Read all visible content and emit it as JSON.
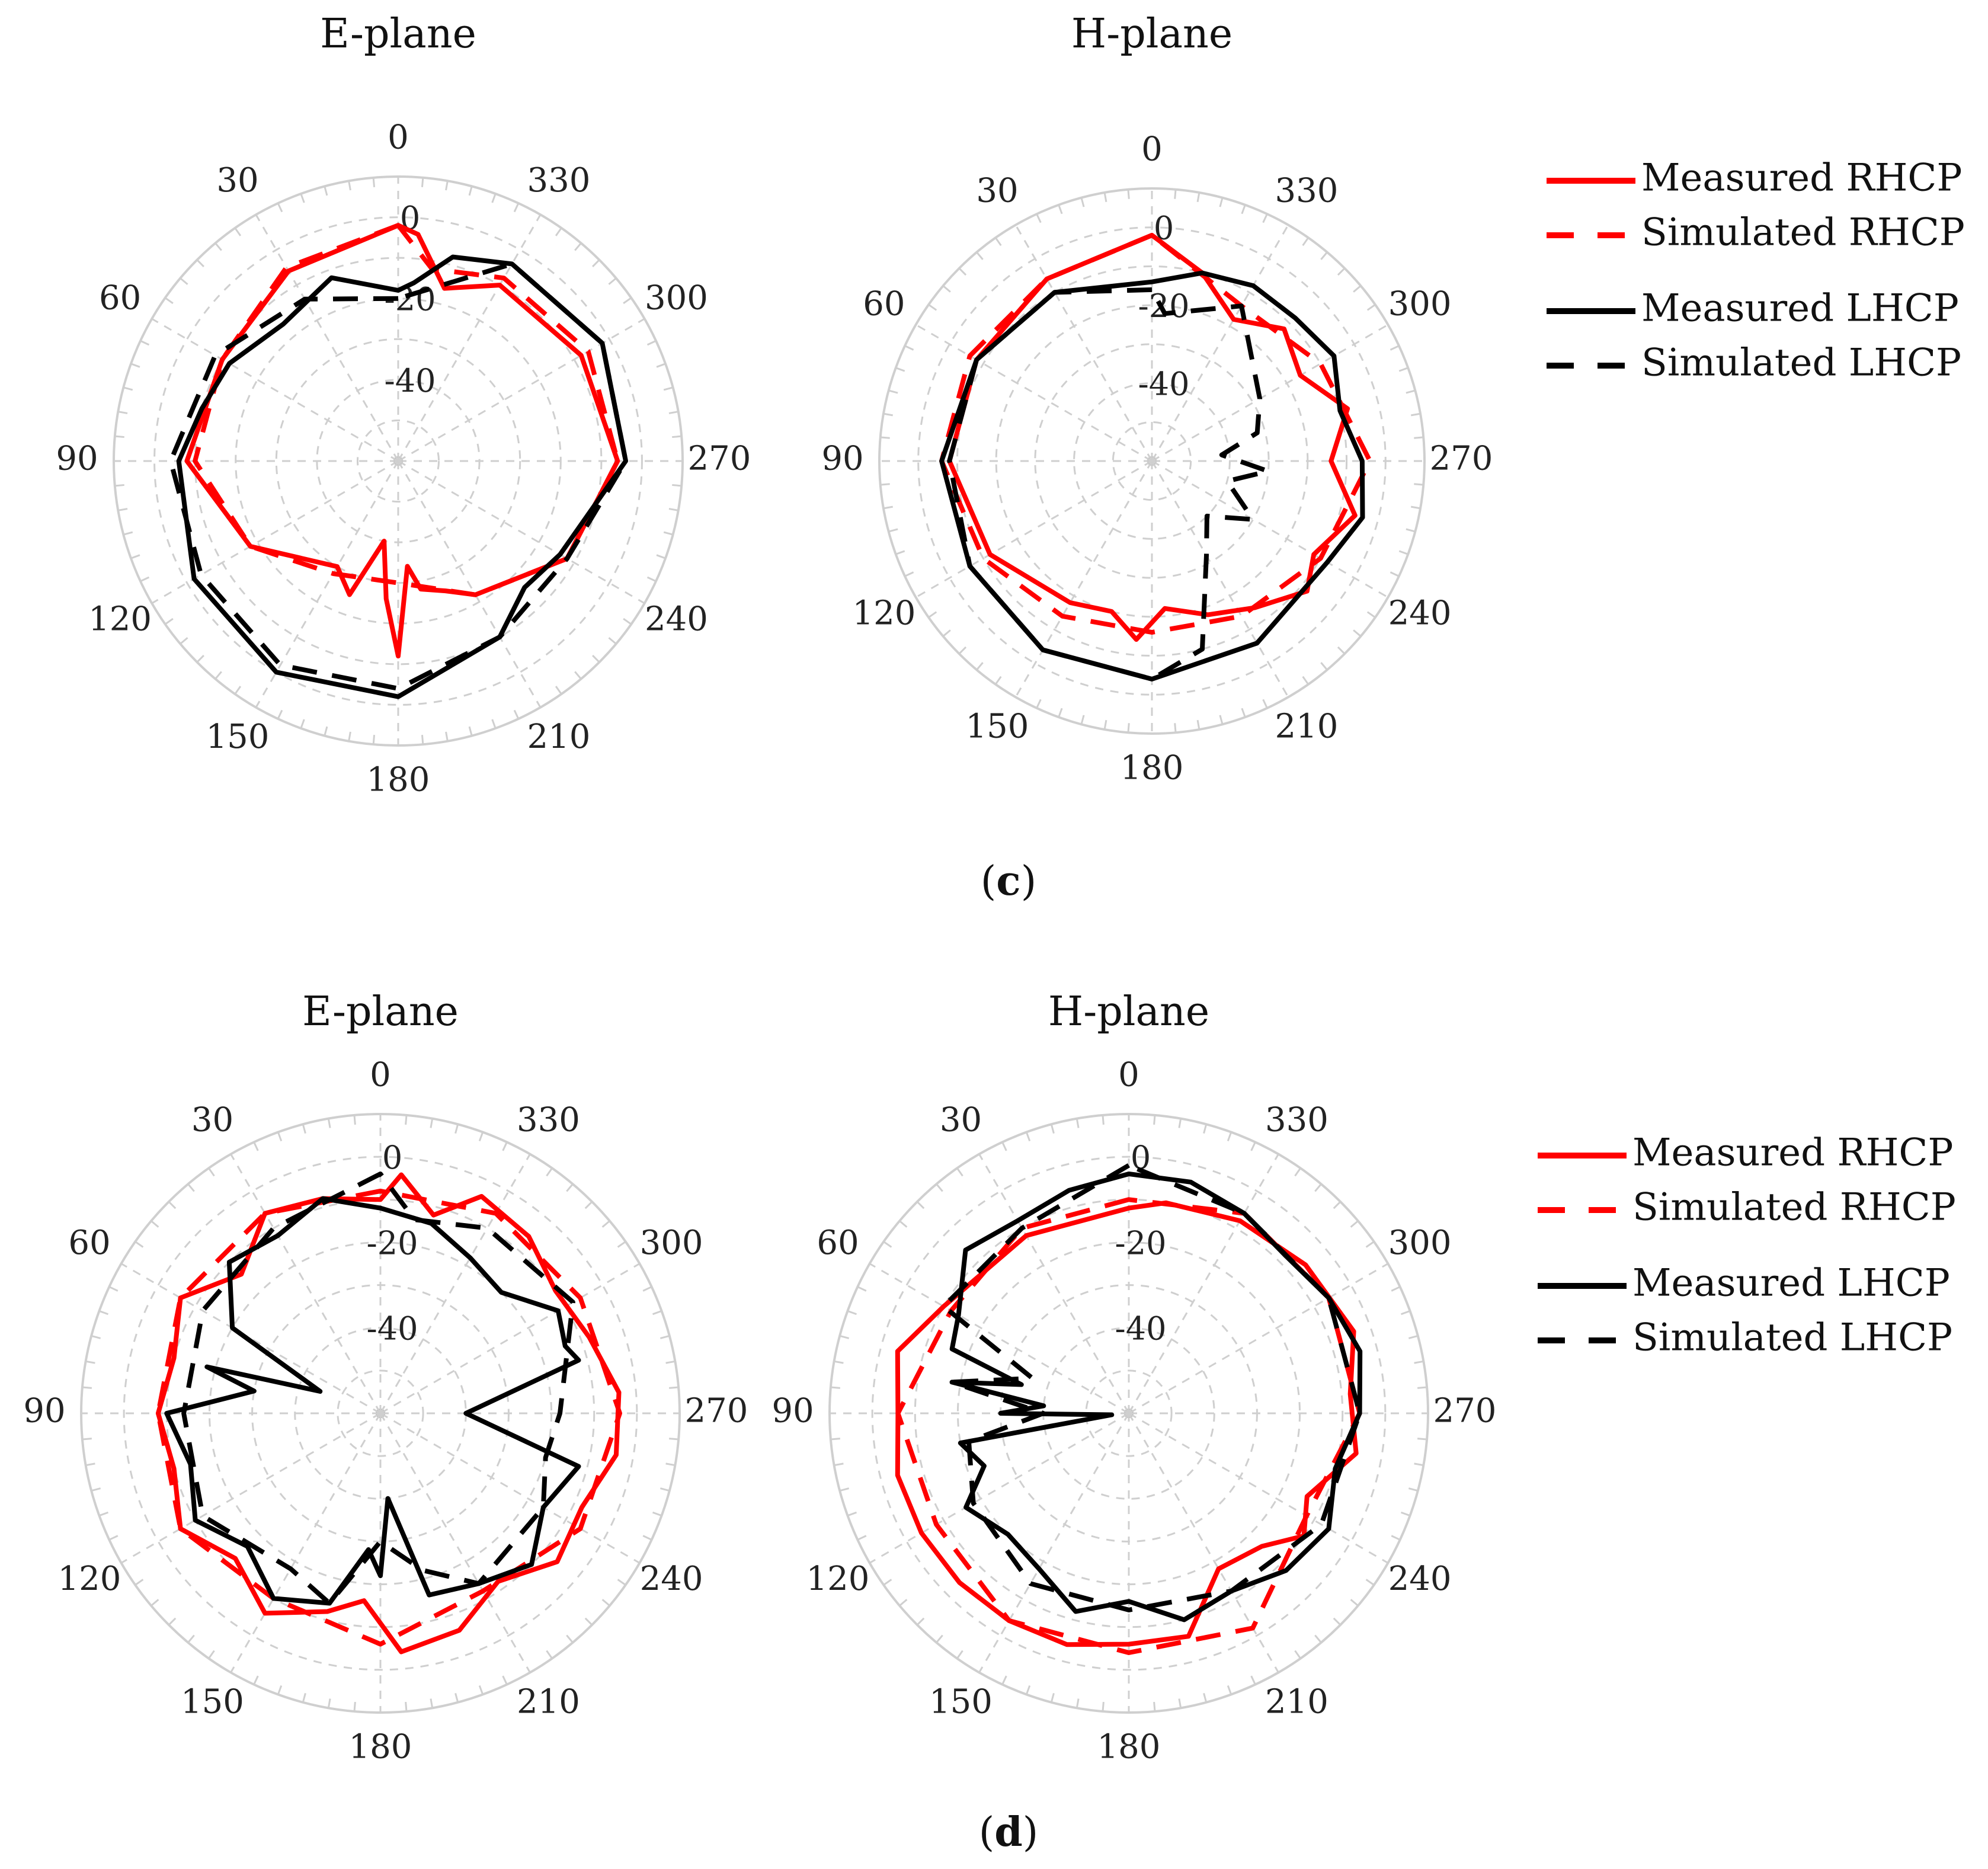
{
  "colors": {
    "rhcp": "#ff0000",
    "lhcp": "#000000",
    "grid": "#cfcfcf"
  },
  "legend": {
    "entries": [
      {
        "label": "Measured RHCP",
        "color": "#ff0000",
        "dash": "solid"
      },
      {
        "label": "Simulated RHCP",
        "color": "#ff0000",
        "dash": "dashed"
      },
      {
        "label": "Measured LHCP",
        "color": "#000000",
        "dash": "solid"
      },
      {
        "label": "Simulated LHCP",
        "color": "#000000",
        "dash": "dashed"
      }
    ]
  },
  "captions": {
    "c": "c",
    "d": "d"
  },
  "chart_data": [
    {
      "type": "polar-line",
      "panel": "c",
      "title": "E-plane",
      "angle_ticks": [
        0,
        330,
        300,
        270,
        240,
        210,
        180,
        150,
        120,
        90,
        60,
        30
      ],
      "radial_ticks": [
        0,
        -20,
        -40
      ],
      "rlim": [
        -60,
        10
      ],
      "series": [
        {
          "name": "Measured RHCP",
          "angles": [
            0,
            30,
            60,
            90,
            120,
            150,
            160,
            170,
            175,
            180,
            185,
            190,
            200,
            210,
            240,
            270,
            300,
            330,
            345,
            355
          ],
          "values": [
            -2,
            -6,
            -10,
            -8,
            -18,
            -30,
            -25,
            -40,
            -26,
            -12,
            -34,
            -28,
            -26,
            -22,
            -12,
            -6,
            -8,
            -10,
            -16,
            -4
          ]
        },
        {
          "name": "Simulated RHCP",
          "angles": [
            0,
            30,
            60,
            90,
            120,
            150,
            180,
            210,
            240,
            270,
            300,
            330,
            350
          ],
          "values": [
            -2,
            -5,
            -10,
            -10,
            -18,
            -28,
            -30,
            -22,
            -12,
            -6,
            -6,
            -8,
            -12
          ]
        },
        {
          "name": "Measured LHCP",
          "angles": [
            0,
            20,
            40,
            60,
            75,
            90,
            120,
            150,
            180,
            210,
            225,
            240,
            270,
            300,
            330,
            345,
            355
          ],
          "values": [
            -18,
            -12,
            -16,
            -12,
            -10,
            -6,
            -2,
            0,
            -2,
            -10,
            -16,
            -14,
            -4,
            -2,
            -4,
            -8,
            -16
          ]
        },
        {
          "name": "Simulated LHCP",
          "angles": [
            0,
            30,
            60,
            90,
            120,
            150,
            180,
            210,
            240,
            270,
            300,
            330
          ],
          "values": [
            -20,
            -14,
            -8,
            -4,
            -4,
            -2,
            -4,
            -10,
            -12,
            -4,
            -2,
            -4
          ]
        }
      ]
    },
    {
      "type": "polar-line",
      "panel": "c",
      "title": "H-plane",
      "angle_ticks": [
        0,
        330,
        300,
        270,
        240,
        210,
        180,
        150,
        120,
        90,
        60,
        30
      ],
      "radial_ticks": [
        0,
        -20,
        -40
      ],
      "rlim": [
        -60,
        10
      ],
      "series": [
        {
          "name": "Measured RHCP",
          "angles": [
            0,
            30,
            60,
            90,
            120,
            150,
            165,
            175,
            185,
            200,
            215,
            230,
            240,
            255,
            270,
            285,
            300,
            315,
            330,
            345
          ],
          "values": [
            -2,
            -6,
            -8,
            -8,
            -12,
            -18,
            -20,
            -14,
            -22,
            -18,
            -14,
            -8,
            -12,
            -6,
            -14,
            -8,
            -16,
            -12,
            -18,
            -10
          ]
        },
        {
          "name": "Simulated RHCP",
          "angles": [
            0,
            30,
            60,
            90,
            120,
            150,
            180,
            210,
            240,
            270,
            300,
            330
          ],
          "values": [
            -2,
            -6,
            -6,
            -6,
            -10,
            -14,
            -16,
            -14,
            -10,
            -4,
            -10,
            -14
          ]
        },
        {
          "name": "Measured LHCP",
          "angles": [
            0,
            30,
            60,
            90,
            120,
            150,
            180,
            210,
            240,
            255,
            270,
            285,
            300,
            315,
            330,
            345
          ],
          "values": [
            -14,
            -10,
            -8,
            -6,
            -6,
            -4,
            -4,
            -6,
            -8,
            -4,
            -6,
            -10,
            -6,
            -8,
            -8,
            -10
          ]
        },
        {
          "name": "Simulated LHCP",
          "angles": [
            0,
            30,
            60,
            90,
            120,
            150,
            180,
            195,
            210,
            225,
            240,
            255,
            265,
            275,
            285,
            300,
            330,
            355
          ],
          "values": [
            -16,
            -10,
            -8,
            -8,
            -6,
            -4,
            -4,
            -10,
            -32,
            -40,
            -30,
            -40,
            -30,
            -42,
            -32,
            -28,
            -14,
            -22
          ]
        }
      ]
    },
    {
      "type": "polar-line",
      "panel": "d",
      "title": "E-plane",
      "angle_ticks": [
        0,
        330,
        300,
        270,
        240,
        210,
        180,
        150,
        120,
        90,
        60,
        30
      ],
      "radial_ticks": [
        0,
        -20,
        -40
      ],
      "rlim": [
        -60,
        10
      ],
      "series": [
        {
          "name": "Measured RHCP",
          "angles": [
            0,
            15,
            30,
            45,
            60,
            75,
            90,
            105,
            120,
            135,
            150,
            165,
            175,
            185,
            200,
            215,
            230,
            245,
            260,
            275,
            290,
            305,
            320,
            335,
            345,
            355
          ],
          "values": [
            -10,
            -8,
            -6,
            -14,
            -6,
            -10,
            -8,
            -10,
            -6,
            -12,
            -6,
            -12,
            -16,
            -4,
            -6,
            -12,
            -6,
            -8,
            -4,
            -4,
            -8,
            -10,
            -6,
            -4,
            -12,
            -4
          ]
        },
        {
          "name": "Simulated RHCP",
          "angles": [
            0,
            30,
            60,
            90,
            120,
            150,
            180,
            210,
            240,
            270,
            300,
            330
          ],
          "values": [
            -8,
            -6,
            -6,
            -8,
            -6,
            -10,
            -6,
            -12,
            -6,
            -4,
            -6,
            -6
          ]
        },
        {
          "name": "Measured LHCP",
          "angles": [
            0,
            15,
            30,
            45,
            60,
            70,
            75,
            80,
            90,
            105,
            120,
            135,
            150,
            165,
            175,
            180,
            185,
            195,
            210,
            225,
            240,
            255,
            270,
            285,
            290,
            300,
            315,
            330,
            345
          ],
          "values": [
            -12,
            -8,
            -12,
            -10,
            -20,
            -45,
            -18,
            -30,
            -10,
            -14,
            -10,
            -16,
            -10,
            -14,
            -28,
            -22,
            -40,
            -16,
            -14,
            -10,
            -16,
            -12,
            -40,
            -12,
            -14,
            -12,
            -20,
            -18,
            -14
          ]
        },
        {
          "name": "Simulated LHCP",
          "angles": [
            0,
            30,
            60,
            90,
            120,
            150,
            165,
            180,
            195,
            210,
            240,
            255,
            270,
            300,
            330,
            350
          ],
          "values": [
            -4,
            -10,
            -12,
            -14,
            -12,
            -18,
            -14,
            -30,
            -22,
            -14,
            -16,
            -20,
            -18,
            -8,
            -10,
            -14
          ]
        }
      ]
    },
    {
      "type": "polar-line",
      "panel": "d",
      "title": "H-plane",
      "angle_ticks": [
        0,
        330,
        300,
        270,
        240,
        210,
        180,
        150,
        120,
        90,
        60,
        30
      ],
      "radial_ticks": [
        0,
        -20,
        -40
      ],
      "rlim": [
        -60,
        10
      ],
      "series": [
        {
          "name": "Measured RHCP",
          "angles": [
            0,
            30,
            60,
            75,
            90,
            105,
            120,
            135,
            150,
            165,
            180,
            195,
            210,
            225,
            235,
            245,
            260,
            275,
            290,
            310,
            330,
            350
          ],
          "values": [
            -12,
            -12,
            -10,
            -4,
            -6,
            -4,
            -4,
            -4,
            -4,
            -4,
            -6,
            -6,
            -18,
            -16,
            -10,
            -14,
            -6,
            -8,
            -4,
            -6,
            -8,
            -10
          ]
        },
        {
          "name": "Simulated RHCP",
          "angles": [
            0,
            30,
            60,
            90,
            120,
            150,
            180,
            210,
            240,
            270,
            300,
            330
          ],
          "values": [
            -10,
            -10,
            -12,
            -6,
            -8,
            -4,
            -4,
            -2,
            -12,
            -6,
            -6,
            -6
          ]
        },
        {
          "name": "Measured LHCP",
          "angles": [
            0,
            15,
            30,
            45,
            60,
            70,
            75,
            80,
            85,
            90,
            95,
            100,
            110,
            120,
            135,
            150,
            165,
            180,
            195,
            210,
            225,
            240,
            255,
            270,
            285,
            300,
            315,
            330,
            345
          ],
          "values": [
            -4,
            -6,
            -8,
            -6,
            -14,
            -16,
            -34,
            -18,
            -40,
            -30,
            -56,
            -20,
            -24,
            -16,
            -20,
            -18,
            -12,
            -16,
            -10,
            -12,
            -8,
            -6,
            -10,
            -6,
            -4,
            -6,
            -8,
            -6,
            -4
          ]
        },
        {
          "name": "Simulated LHCP",
          "angles": [
            0,
            30,
            60,
            70,
            80,
            90,
            100,
            120,
            150,
            180,
            210,
            240,
            270,
            300,
            330
          ],
          "values": [
            -2,
            -10,
            -10,
            -36,
            -18,
            -40,
            -22,
            -18,
            -14,
            -14,
            -12,
            -8,
            -6,
            -6,
            -6
          ]
        }
      ]
    }
  ]
}
